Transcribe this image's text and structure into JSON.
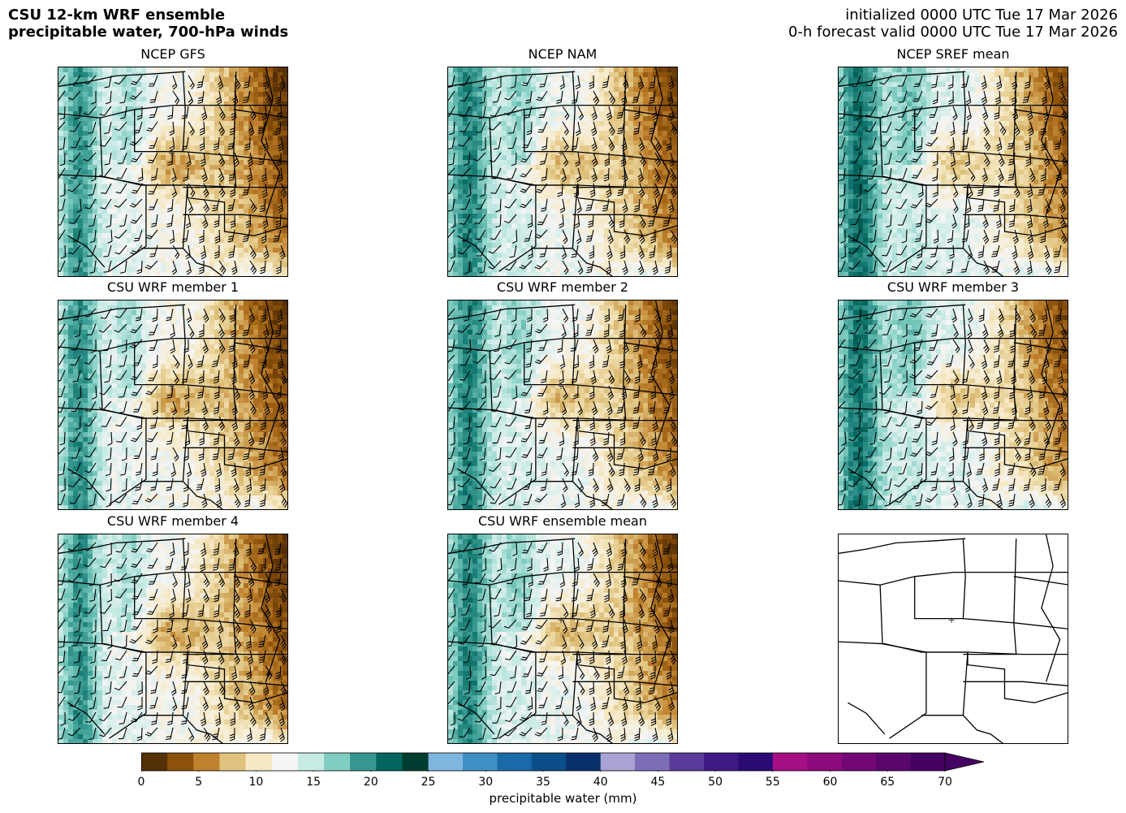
{
  "header": {
    "title_line1": "CSU 12-km WRF ensemble",
    "title_line2": "precipitable water, 700-hPa winds",
    "init_line": "initialized 0000 UTC Tue 17 Mar 2026",
    "valid_line": "0-h forecast valid 0000 UTC Tue 17 Mar 2026"
  },
  "panels": [
    {
      "title": "NCEP GFS",
      "kind": "field",
      "variant": 0
    },
    {
      "title": "NCEP NAM",
      "kind": "field",
      "variant": 1
    },
    {
      "title": "NCEP SREF mean",
      "kind": "field",
      "variant": 2
    },
    {
      "title": "CSU WRF member 1",
      "kind": "field",
      "variant": 3
    },
    {
      "title": "CSU WRF member 2",
      "kind": "field",
      "variant": 4
    },
    {
      "title": "CSU WRF member 3",
      "kind": "field",
      "variant": 5
    },
    {
      "title": "CSU WRF member 4",
      "kind": "field",
      "variant": 6
    },
    {
      "title": "CSU WRF ensemble mean",
      "kind": "field",
      "variant": 7
    },
    {
      "title": "",
      "kind": "basemap",
      "variant": 8
    }
  ],
  "colorbar": {
    "label": "precipitable water (mm)",
    "min": 0,
    "max": 70,
    "ticks": [
      "0",
      "5",
      "10",
      "15",
      "20",
      "25",
      "30",
      "35",
      "40",
      "45",
      "50",
      "55",
      "60",
      "65",
      "70"
    ],
    "extend": "max",
    "segments": [
      {
        "from": 0,
        "to": 25,
        "colors": [
          "#543005",
          "#8c510a",
          "#bf812d",
          "#dfc27d",
          "#f6e8c3",
          "#f5f5f5",
          "#c7eae5",
          "#80cdc1",
          "#35978f",
          "#01665e",
          "#003c30"
        ]
      },
      {
        "from": 25,
        "to": 40,
        "colors": [
          "#7fb6df",
          "#3f8fc5",
          "#1a6aa8",
          "#0b4f8a",
          "#08306b"
        ]
      },
      {
        "from": 40,
        "to": 55,
        "colors": [
          "#a9a2d2",
          "#7d6db5",
          "#5a3d9a",
          "#3f1a86",
          "#2a0b75"
        ]
      },
      {
        "from": 55,
        "to": 70,
        "colors": [
          "#a50f84",
          "#8e0a7c",
          "#730874",
          "#5b066b",
          "#460263"
        ]
      }
    ]
  }
}
